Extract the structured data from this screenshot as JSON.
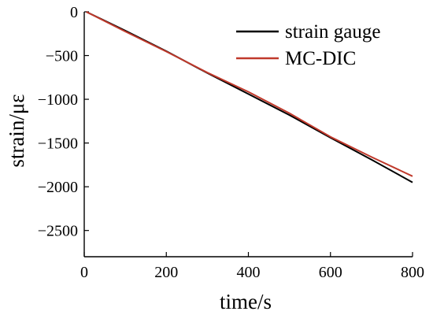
{
  "chart_data": {
    "type": "line",
    "xlabel": "time/s",
    "ylabel": "strain/με",
    "xlim": [
      0,
      800
    ],
    "ylim": [
      -2800,
      0
    ],
    "xticks": [
      0,
      200,
      400,
      600,
      800
    ],
    "yticks": [
      0,
      -500,
      -1000,
      -1500,
      -2000,
      -2500
    ],
    "grid": false,
    "legend_position": "top-right",
    "series": [
      {
        "name": "strain gauge",
        "color": "#000000",
        "x": [
          5,
          100,
          200,
          300,
          400,
          500,
          600,
          700,
          800
        ],
        "y": [
          0,
          -215,
          -450,
          -700,
          -940,
          -1180,
          -1440,
          -1690,
          -1950
        ]
      },
      {
        "name": "MC-DIC",
        "color": "#c0392b",
        "x": [
          5,
          100,
          200,
          300,
          400,
          500,
          600,
          700,
          800
        ],
        "y": [
          0,
          -225,
          -455,
          -695,
          -915,
          -1160,
          -1430,
          -1660,
          -1880
        ]
      }
    ]
  }
}
